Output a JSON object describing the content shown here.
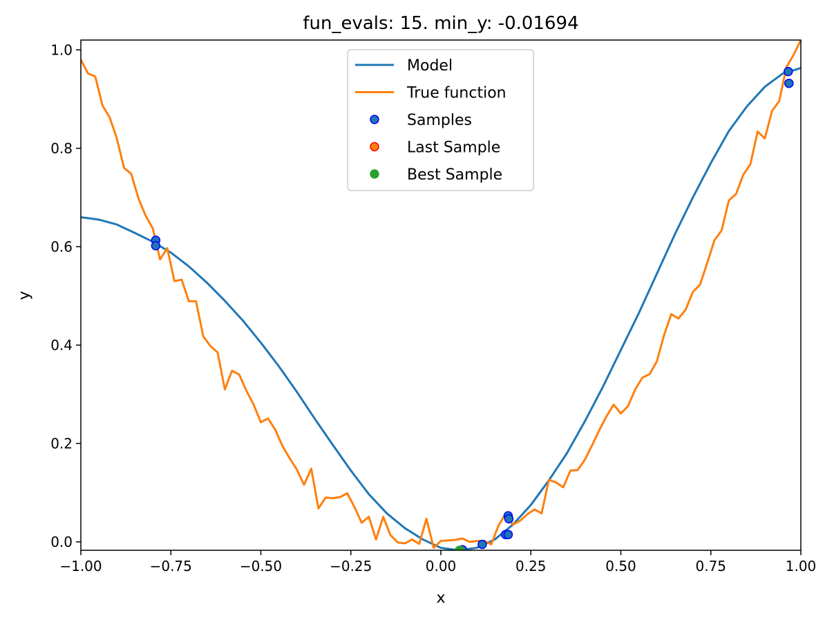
{
  "chart_data": {
    "type": "line",
    "title": "fun_evals: 15. min_y: -0.01694",
    "xlabel": "x",
    "ylabel": "y",
    "xlim": [
      -1.0,
      1.0
    ],
    "ylim": [
      -0.017,
      1.02
    ],
    "grid": false,
    "legend_position": "top-center",
    "x_ticks": [
      {
        "value": -1.0,
        "label": "−1.00"
      },
      {
        "value": -0.75,
        "label": "−0.75"
      },
      {
        "value": -0.5,
        "label": "−0.50"
      },
      {
        "value": -0.25,
        "label": "−0.25"
      },
      {
        "value": 0.0,
        "label": "0.00"
      },
      {
        "value": 0.25,
        "label": "0.25"
      },
      {
        "value": 0.5,
        "label": "0.50"
      },
      {
        "value": 0.75,
        "label": "0.75"
      },
      {
        "value": 1.0,
        "label": "1.00"
      }
    ],
    "y_ticks": [
      {
        "value": 0.0,
        "label": "0.0"
      },
      {
        "value": 0.2,
        "label": "0.2"
      },
      {
        "value": 0.4,
        "label": "0.4"
      },
      {
        "value": 0.6,
        "label": "0.6"
      },
      {
        "value": 0.8,
        "label": "0.8"
      },
      {
        "value": 1.0,
        "label": "1.0"
      }
    ],
    "legend": [
      {
        "label": "Model",
        "kind": "line",
        "color": "#1f77b4"
      },
      {
        "label": "True function",
        "kind": "line",
        "color": "#ff7f0e"
      },
      {
        "label": "Samples",
        "kind": "marker",
        "color": "#1f77b4",
        "edge": "#0000ff"
      },
      {
        "label": "Last Sample",
        "kind": "marker",
        "color": "#ff7f0e",
        "edge": "#ff0000"
      },
      {
        "label": "Best Sample",
        "kind": "marker",
        "color": "#2ca02c",
        "edge": "#2ca02c"
      }
    ],
    "series": [
      {
        "name": "Model",
        "kind": "line",
        "color": "#1f77b4",
        "x": [
          -1.0,
          -0.95,
          -0.9,
          -0.85,
          -0.8,
          -0.75,
          -0.7,
          -0.65,
          -0.6,
          -0.55,
          -0.5,
          -0.45,
          -0.4,
          -0.35,
          -0.3,
          -0.25,
          -0.2,
          -0.15,
          -0.1,
          -0.05,
          0.0,
          0.05,
          0.1,
          0.15,
          0.2,
          0.25,
          0.3,
          0.35,
          0.4,
          0.45,
          0.5,
          0.55,
          0.6,
          0.65,
          0.7,
          0.75,
          0.8,
          0.85,
          0.9,
          0.95,
          1.0
        ],
        "y": [
          0.66,
          0.655,
          0.645,
          0.628,
          0.61,
          0.588,
          0.56,
          0.527,
          0.49,
          0.45,
          0.405,
          0.357,
          0.305,
          0.25,
          0.197,
          0.145,
          0.097,
          0.058,
          0.028,
          0.005,
          -0.012,
          -0.017,
          -0.012,
          0.005,
          0.035,
          0.075,
          0.125,
          0.18,
          0.245,
          0.315,
          0.39,
          0.465,
          0.545,
          0.625,
          0.7,
          0.77,
          0.835,
          0.885,
          0.925,
          0.952,
          0.963
        ]
      },
      {
        "name": "True function",
        "kind": "line",
        "color": "#ff7f0e",
        "x": [
          -1.0,
          -0.98,
          -0.96,
          -0.94,
          -0.92,
          -0.9,
          -0.88,
          -0.86,
          -0.84,
          -0.82,
          -0.8,
          -0.78,
          -0.76,
          -0.74,
          -0.72,
          -0.7,
          -0.68,
          -0.66,
          -0.64,
          -0.62,
          -0.6,
          -0.58,
          -0.56,
          -0.54,
          -0.52,
          -0.5,
          -0.48,
          -0.46,
          -0.44,
          -0.42,
          -0.4,
          -0.38,
          -0.36,
          -0.34,
          -0.32,
          -0.3,
          -0.28,
          -0.26,
          -0.24,
          -0.22,
          -0.2,
          -0.18,
          -0.16,
          -0.14,
          -0.12,
          -0.1,
          -0.08,
          -0.06,
          -0.04,
          -0.02,
          0.0,
          0.02,
          0.04,
          0.06,
          0.08,
          0.1,
          0.12,
          0.14,
          0.16,
          0.18,
          0.2,
          0.22,
          0.24,
          0.26,
          0.28,
          0.3,
          0.32,
          0.34,
          0.36,
          0.38,
          0.4,
          0.42,
          0.44,
          0.46,
          0.48,
          0.5,
          0.52,
          0.54,
          0.56,
          0.58,
          0.6,
          0.62,
          0.64,
          0.66,
          0.68,
          0.7,
          0.72,
          0.74,
          0.76,
          0.78,
          0.8,
          0.82,
          0.84,
          0.86,
          0.88,
          0.9,
          0.92,
          0.94,
          0.96,
          0.98,
          1.0
        ],
        "y": [
          0.98,
          0.952,
          0.946,
          0.887,
          0.863,
          0.82,
          0.76,
          0.748,
          0.698,
          0.663,
          0.637,
          0.574,
          0.597,
          0.53,
          0.533,
          0.489,
          0.489,
          0.418,
          0.398,
          0.385,
          0.31,
          0.348,
          0.34,
          0.307,
          0.279,
          0.243,
          0.251,
          0.228,
          0.195,
          0.17,
          0.147,
          0.116,
          0.149,
          0.068,
          0.09,
          0.089,
          0.091,
          0.099,
          0.071,
          0.039,
          0.051,
          0.005,
          0.051,
          0.014,
          -0.001,
          -0.003,
          0.005,
          -0.004,
          0.047,
          -0.012,
          0.002,
          0.003,
          0.004,
          0.007,
          0.0,
          0.002,
          0.002,
          -0.005,
          0.033,
          0.057,
          0.035,
          0.043,
          0.056,
          0.066,
          0.058,
          0.126,
          0.121,
          0.111,
          0.145,
          0.146,
          0.167,
          0.196,
          0.227,
          0.255,
          0.279,
          0.261,
          0.276,
          0.31,
          0.334,
          0.341,
          0.367,
          0.42,
          0.463,
          0.454,
          0.472,
          0.508,
          0.523,
          0.567,
          0.613,
          0.633,
          0.694,
          0.707,
          0.746,
          0.768,
          0.834,
          0.82,
          0.876,
          0.896,
          0.965,
          0.99,
          1.02
        ]
      },
      {
        "name": "Samples",
        "kind": "scatter",
        "color": "#1f77b4",
        "edge": "#0000ff",
        "x": [
          -0.792,
          -0.792,
          0.06,
          0.115,
          0.18,
          0.187,
          0.187,
          0.189,
          0.965,
          0.967
        ],
        "y": [
          0.613,
          0.602,
          -0.016,
          -0.005,
          0.015,
          0.015,
          0.053,
          0.047,
          0.956,
          0.932
        ]
      },
      {
        "name": "Last Sample",
        "kind": "scatter",
        "color": "#ff7f0e",
        "edge": "#ff0000",
        "x": [],
        "y": []
      },
      {
        "name": "Best Sample",
        "kind": "scatter",
        "color": "#2ca02c",
        "edge": "#2ca02c",
        "x": [
          0.052
        ],
        "y": [
          -0.01694
        ]
      }
    ]
  }
}
